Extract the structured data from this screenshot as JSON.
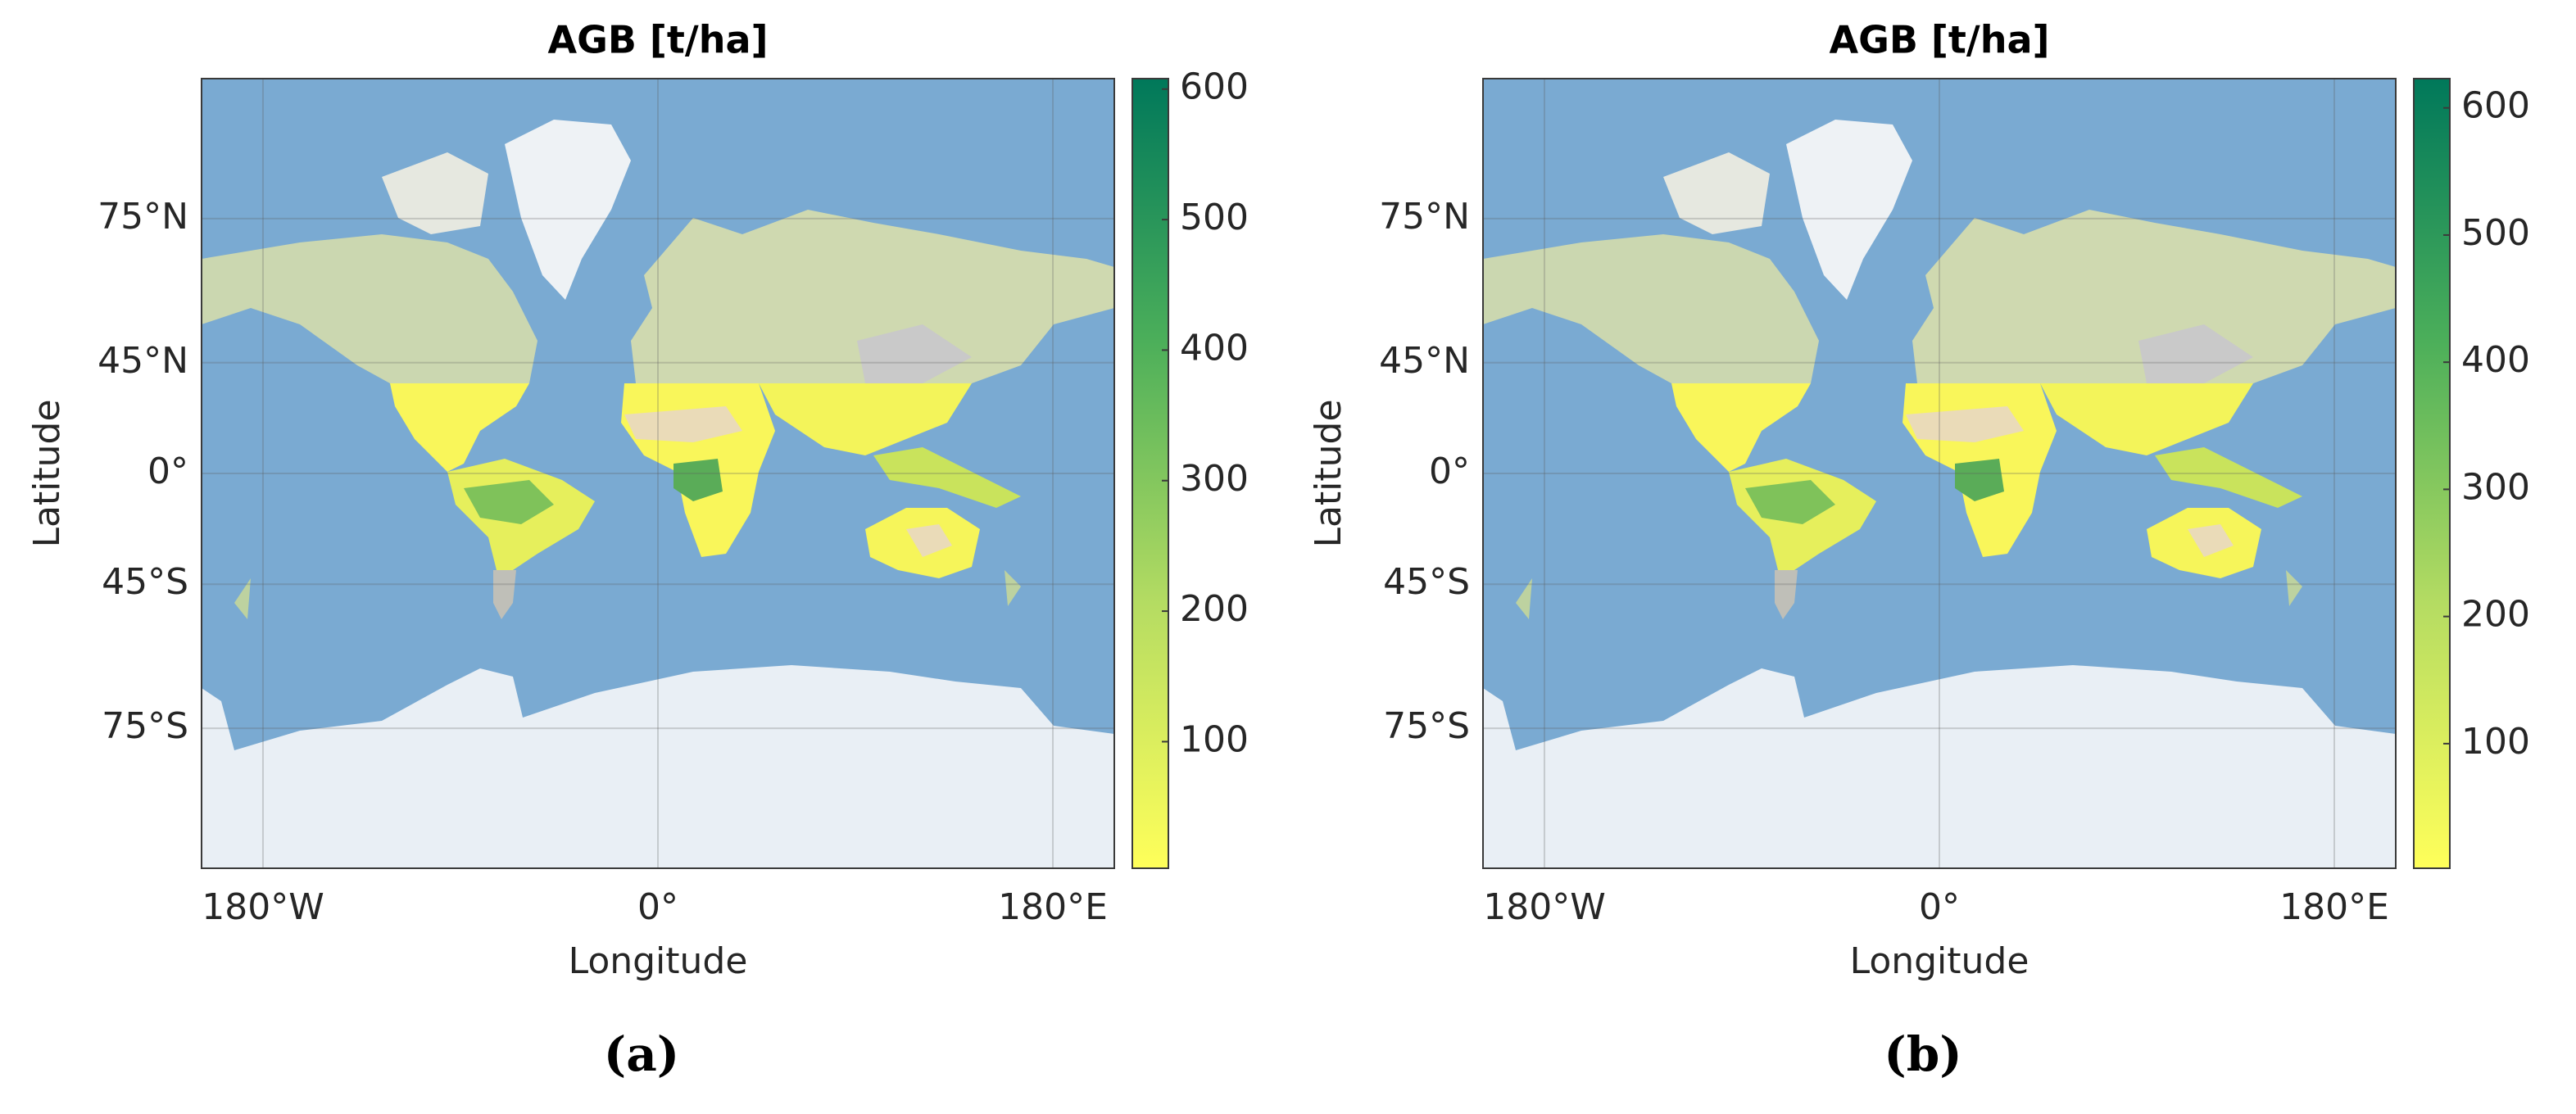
{
  "panels": [
    {
      "title": "AGB [t/ha]",
      "xlabel": "Longitude",
      "ylabel": "Latitude",
      "xlim": [
        -208,
        208
      ],
      "ylim": [
        -85.05,
        85.05
      ],
      "xticks": [
        {
          "value": -180,
          "label": "180°W"
        },
        {
          "value": 0,
          "label": "0°"
        },
        {
          "value": 180,
          "label": "180°E"
        }
      ],
      "yticks": [
        {
          "value": 75,
          "label": "75°N"
        },
        {
          "value": 45,
          "label": "45°N"
        },
        {
          "value": 0,
          "label": "0°"
        },
        {
          "value": -45,
          "label": "45°S"
        },
        {
          "value": -75,
          "label": "75°S"
        }
      ],
      "grid": true,
      "colorbar": {
        "lim": [
          3,
          608
        ],
        "ticks": [
          100,
          200,
          300,
          400,
          500,
          600
        ],
        "colors": [
          "#ffff5a",
          "#b5dc62",
          "#4caf5a",
          "#00785a"
        ]
      },
      "caption": "(a)"
    },
    {
      "title": "AGB [t/ha]",
      "xlabel": "Longitude",
      "ylabel": "Latitude",
      "xlim": [
        -208,
        208
      ],
      "ylim": [
        -85.05,
        85.05
      ],
      "xticks": [
        {
          "value": -180,
          "label": "180°W"
        },
        {
          "value": 0,
          "label": "0°"
        },
        {
          "value": 180,
          "label": "180°E"
        }
      ],
      "yticks": [
        {
          "value": 75,
          "label": "75°N"
        },
        {
          "value": 45,
          "label": "45°N"
        },
        {
          "value": 0,
          "label": "0°"
        },
        {
          "value": -45,
          "label": "45°S"
        },
        {
          "value": -75,
          "label": "75°S"
        }
      ],
      "grid": true,
      "colorbar": {
        "lim": [
          2,
          623
        ],
        "ticks": [
          100,
          200,
          300,
          400,
          500,
          600
        ],
        "colors": [
          "#ffff5a",
          "#b5dc62",
          "#4caf5a",
          "#00785a"
        ]
      },
      "caption": "(b)"
    }
  ]
}
